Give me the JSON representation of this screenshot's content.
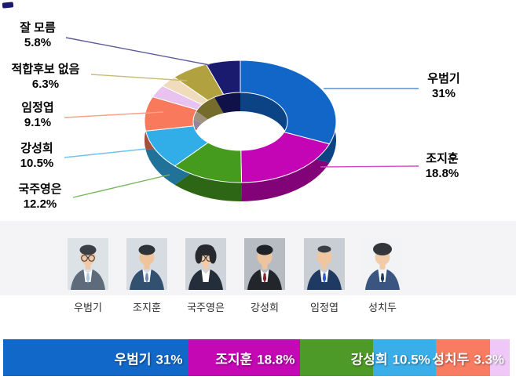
{
  "chart_data": {
    "type": "pie",
    "subtype": "3d-donut",
    "title": "",
    "unit": "%",
    "legend_position": "callouts",
    "slices": [
      {
        "label": "우범기",
        "value": 31,
        "display": "31%",
        "color": "#1266c8"
      },
      {
        "label": "조지훈",
        "value": 18.8,
        "display": "18.8%",
        "color": "#c405b5"
      },
      {
        "label": "국주영은",
        "value": 12.2,
        "display": "12.2%",
        "color": "#449b1e"
      },
      {
        "label": "강성희",
        "value": 10.5,
        "display": "10.5%",
        "color": "#31ade8"
      },
      {
        "label": "임정엽",
        "value": 9.1,
        "display": "9.1%",
        "color": "#f8795b"
      },
      {
        "label": "성치두",
        "value": 3.3,
        "display": "3.3%",
        "color": "#e9c3ef"
      },
      {
        "label": "",
        "value": 3.0,
        "display": "",
        "color": "#f0dcbd"
      },
      {
        "label": "적합후보 없음",
        "value": 6.3,
        "display": "6.3%",
        "color": "#b1a23f"
      },
      {
        "label": "잘 모름",
        "value": 5.8,
        "display": "5.8%",
        "color": "#1a1a6e"
      }
    ]
  },
  "candidates": [
    {
      "name": "우범기",
      "photo": {
        "bg": "#dde2e6",
        "hair": "#3c4046",
        "suit": "#5d6b7a",
        "shirt": "#ffffff",
        "tie": "#a9cde9",
        "skin": "#f0c8a6",
        "hair_style": "side",
        "glasses": true
      }
    },
    {
      "name": "조지훈",
      "photo": {
        "bg": "#d6dce1",
        "hair": "#2e3338",
        "suit": "#32506f",
        "shirt": "#ffffff",
        "tie": "#6d8fb3",
        "skin": "#efc39c",
        "hair_style": "side",
        "glasses": false
      }
    },
    {
      "name": "국주영은",
      "photo": {
        "bg": "#ced4da",
        "hair": "#26292e",
        "suit": "#242d3a",
        "shirt": "#ffffff",
        "tie": "",
        "skin": "#f2cba8",
        "hair_style": "bob",
        "glasses": true
      }
    },
    {
      "name": "강성희",
      "photo": {
        "bg": "#b6bcc2",
        "hair": "#1f2327",
        "suit": "#22262b",
        "shirt": "#ffffff",
        "tie": "#8d2030",
        "skin": "#eec49e",
        "hair_style": "side",
        "glasses": false
      }
    },
    {
      "name": "임정엽",
      "photo": {
        "bg": "#c8ced4",
        "hair": "#3b3e43",
        "suit": "#1f3a62",
        "shirt": "#ffffff",
        "tie": "#2b5cc8",
        "skin": "#f0c6a0",
        "hair_style": "bald",
        "glasses": false
      }
    },
    {
      "name": "성치두",
      "photo": {
        "bg": "#f1f3f5",
        "hair": "#33373c",
        "suit": "#3a5580",
        "shirt": "#ffffff",
        "tie": "#243a5a",
        "skin": "#f2cba8",
        "hair_style": "fluffy",
        "glasses": false
      }
    }
  ],
  "bottom_bar": {
    "segments": [
      {
        "label": "우범기",
        "display": "31%",
        "value": 31,
        "color": "#1268c8",
        "show_label": true
      },
      {
        "label": "조지훈",
        "display": "18.8%",
        "value": 18.8,
        "color": "#c408b4",
        "show_label": true
      },
      {
        "label": "국주영은",
        "display": "12.2%",
        "value": 12.2,
        "color": "#4e9a28",
        "show_label": false
      },
      {
        "label": "강성희",
        "display": "10.5%",
        "value": 10.5,
        "color": "#3aaee8",
        "show_label": true
      },
      {
        "label": "임정엽",
        "display": "9.1%",
        "value": 9.1,
        "color": "#f87c62",
        "show_label": false
      },
      {
        "label": "성치두",
        "display": "3.3%",
        "value": 3.3,
        "color": "#efc8f7",
        "show_label": true
      }
    ]
  }
}
